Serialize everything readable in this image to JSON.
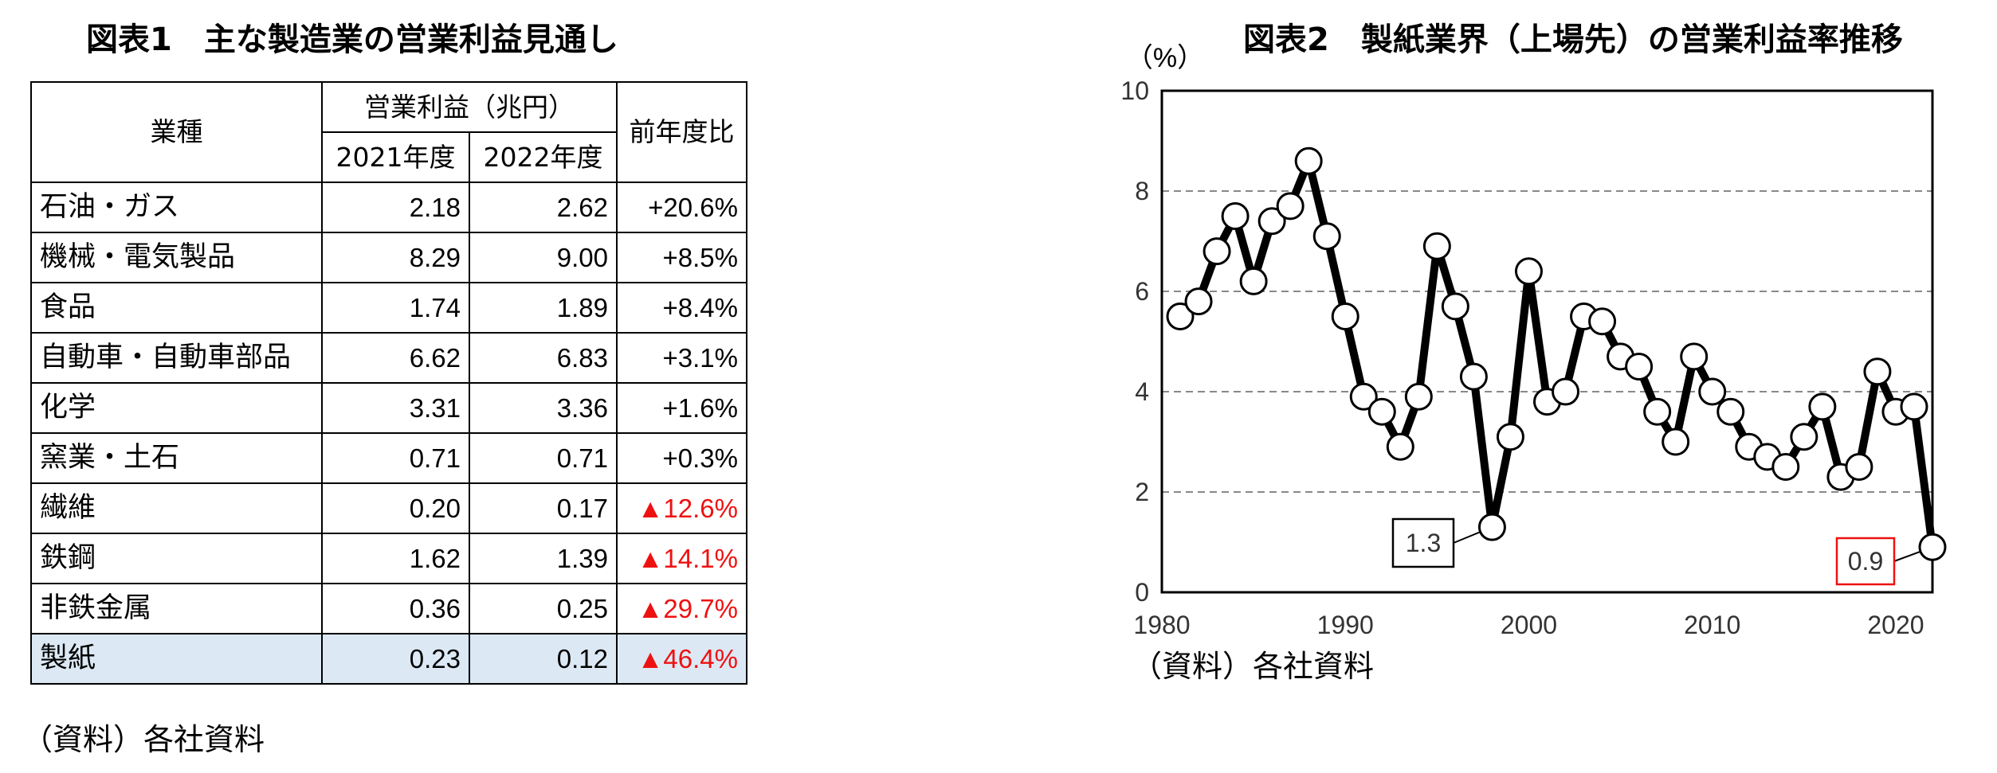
{
  "figure1": {
    "title": "図表1　主な製造業の営業利益見通し",
    "table": {
      "header_industry": "業種",
      "header_profit": "営業利益（兆円）",
      "header_yoy": "前年度比",
      "header_2021": "2021年度",
      "header_2022": "2022年度",
      "rows": [
        {
          "industry": "石油・ガス",
          "fy2021": "2.18",
          "fy2022": "2.62",
          "yoy": "+20.6%",
          "negative": false
        },
        {
          "industry": "機械・電気製品",
          "fy2021": "8.29",
          "fy2022": "9.00",
          "yoy": "+8.5%",
          "negative": false
        },
        {
          "industry": "食品",
          "fy2021": "1.74",
          "fy2022": "1.89",
          "yoy": "+8.4%",
          "negative": false
        },
        {
          "industry": "自動車・自動車部品",
          "fy2021": "6.62",
          "fy2022": "6.83",
          "yoy": "+3.1%",
          "negative": false
        },
        {
          "industry": "化学",
          "fy2021": "3.31",
          "fy2022": "3.36",
          "yoy": "+1.6%",
          "negative": false
        },
        {
          "industry": "窯業・土石",
          "fy2021": "0.71",
          "fy2022": "0.71",
          "yoy": "+0.3%",
          "negative": false
        },
        {
          "industry": "繊維",
          "fy2021": "0.20",
          "fy2022": "0.17",
          "yoy": "▲12.6%",
          "negative": true
        },
        {
          "industry": "鉄鋼",
          "fy2021": "1.62",
          "fy2022": "1.39",
          "yoy": "▲14.1%",
          "negative": true
        },
        {
          "industry": "非鉄金属",
          "fy2021": "0.36",
          "fy2022": "0.25",
          "yoy": "▲29.7%",
          "negative": true
        },
        {
          "industry": "製紙",
          "fy2021": "0.23",
          "fy2022": "0.12",
          "yoy": "▲46.4%",
          "negative": true
        }
      ]
    },
    "source": "（資料）各社資料"
  },
  "figure2": {
    "title": "図表2　製紙業界（上場先）の営業利益率推移",
    "source": "（資料）各社資料"
  },
  "colors": {
    "highlight_row": "#dce9f5",
    "negative_text": "#ee1111",
    "callout_min": "#000000",
    "callout_latest": "#ee1111",
    "line": "#000000",
    "gridline": "#888888"
  },
  "chart_data": {
    "type": "line",
    "title": "図表2　製紙業界（上場先）の営業利益率推移",
    "unit_label": "（%）",
    "xlabel": "",
    "ylabel": "",
    "xlim": [
      1980,
      2022
    ],
    "ylim": [
      0,
      10
    ],
    "x_ticks": [
      1980,
      1990,
      2000,
      2010,
      2020
    ],
    "y_ticks": [
      0,
      2,
      4,
      6,
      8,
      10
    ],
    "grid": "horizontal dashed at 2, 4, 6, 8",
    "series": [
      {
        "x": [
          1981,
          1982,
          1983,
          1984,
          1985,
          1986,
          1987,
          1988,
          1989,
          1990,
          1991,
          1992,
          1993,
          1994,
          1995,
          1996,
          1997,
          1998,
          1999,
          2000,
          2001,
          2002,
          2003,
          2004,
          2005,
          2006,
          2007,
          2008,
          2009,
          2010,
          2011,
          2012,
          2013,
          2014,
          2015,
          2016,
          2017,
          2018,
          2019,
          2020,
          2021,
          2022
        ],
        "y": [
          5.5,
          5.8,
          6.8,
          7.5,
          6.2,
          7.4,
          7.7,
          8.6,
          7.1,
          5.5,
          3.9,
          3.6,
          2.9,
          3.9,
          6.9,
          5.7,
          4.3,
          1.3,
          3.1,
          6.4,
          3.8,
          4.0,
          5.5,
          5.4,
          4.7,
          4.5,
          3.6,
          3.0,
          4.7,
          4.0,
          3.6,
          2.9,
          2.7,
          2.5,
          3.1,
          3.7,
          2.3,
          2.5,
          4.4,
          3.6,
          3.7,
          0.9
        ]
      }
    ],
    "annotations": [
      {
        "x": 1998,
        "y": 1.3,
        "label": "1.3"
      },
      {
        "x": 2022,
        "y": 0.9,
        "label": "0.9"
      }
    ]
  }
}
